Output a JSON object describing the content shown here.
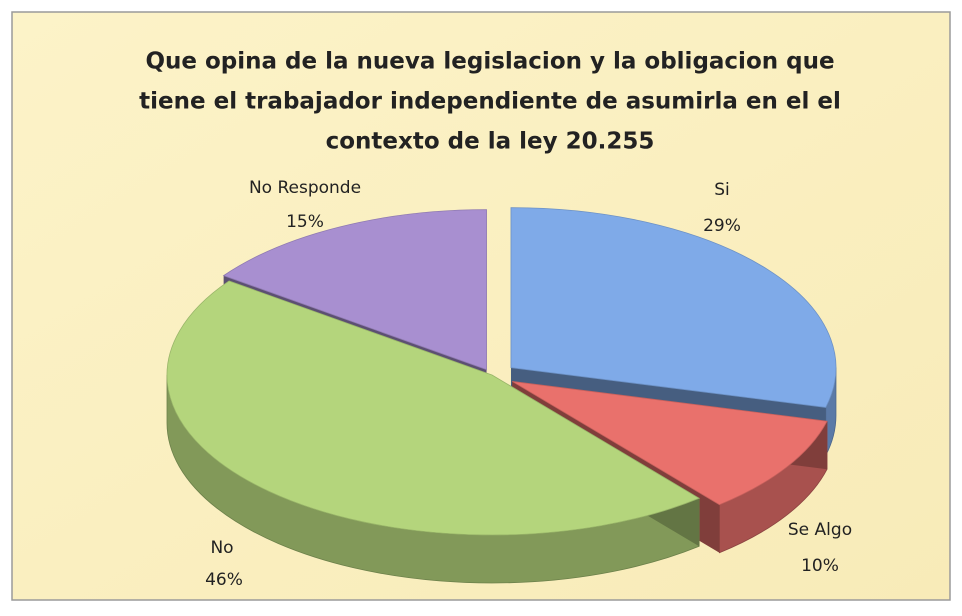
{
  "chart_data": {
    "type": "pie3d",
    "title": [
      "Que opina de la nueva legislacion y la obligacion que",
      "tiene el trabajador  independiente de asumirla en el el",
      "contexto de la ley 20.255"
    ],
    "categories": [
      "Si",
      "Se Algo",
      "No",
      "No Responde"
    ],
    "values": [
      29,
      10,
      46,
      15
    ],
    "value_labels": [
      "29%",
      "10%",
      "46%",
      "15%"
    ],
    "colors": [
      "#7faae8",
      "#e9716c",
      "#b4d57c",
      "#a88fd0"
    ]
  }
}
